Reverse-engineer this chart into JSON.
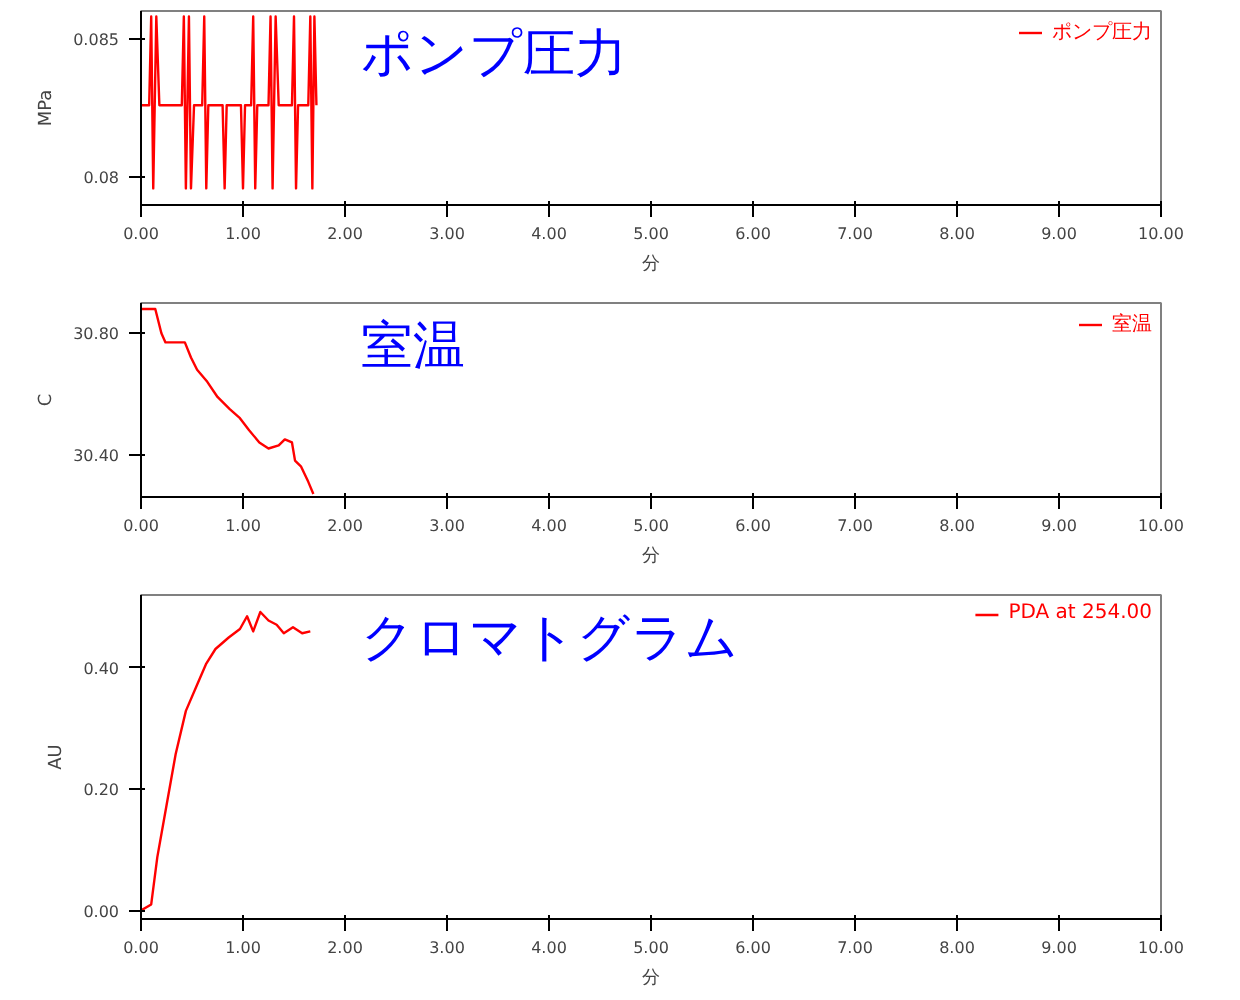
{
  "chart_data": [
    {
      "type": "line",
      "xlabel": "分",
      "ylabel": "MPa",
      "legend": "top right",
      "grid": false,
      "annotations": [
        "ポンプ圧力"
      ],
      "xlim": [
        0,
        10
      ],
      "xticks": [
        {
          "value": 0,
          "label": "0.00"
        },
        {
          "value": 1,
          "label": "1.00"
        },
        {
          "value": 2,
          "label": "2.00"
        },
        {
          "value": 3,
          "label": "3.00"
        },
        {
          "value": 4,
          "label": "4.00"
        },
        {
          "value": 5,
          "label": "5.00"
        },
        {
          "value": 6,
          "label": "6.00"
        },
        {
          "value": 7,
          "label": "7.00"
        },
        {
          "value": 8,
          "label": "8.00"
        },
        {
          "value": 9,
          "label": "9.00"
        },
        {
          "value": 10,
          "label": "10.00"
        }
      ],
      "ylim": [
        0.079,
        0.086
      ],
      "yticks": [
        0.08,
        0.085
      ],
      "series": [
        {
          "name": "ポンプ圧力",
          "color": "#ff0000",
          "x": [
            0,
            0.08,
            0.1,
            0.12,
            0.15,
            0.18,
            0.4,
            0.42,
            0.44,
            0.47,
            0.49,
            0.52,
            0.6,
            0.62,
            0.64,
            0.66,
            0.8,
            0.82,
            0.84,
            0.98,
            1.0,
            1.02,
            1.08,
            1.1,
            1.12,
            1.14,
            1.25,
            1.27,
            1.29,
            1.32,
            1.35,
            1.48,
            1.5,
            1.52,
            1.54,
            1.64,
            1.66,
            1.68,
            1.7,
            1.72
          ],
          "values": [
            0.0826,
            0.0826,
            0.0858,
            0.0796,
            0.0858,
            0.0826,
            0.0826,
            0.0858,
            0.0796,
            0.0858,
            0.0796,
            0.0826,
            0.0826,
            0.0858,
            0.0796,
            0.0826,
            0.0826,
            0.0796,
            0.0826,
            0.0826,
            0.0796,
            0.0826,
            0.0826,
            0.0858,
            0.0796,
            0.0826,
            0.0826,
            0.0858,
            0.0796,
            0.0858,
            0.0826,
            0.0826,
            0.0858,
            0.0796,
            0.0826,
            0.0826,
            0.0858,
            0.0796,
            0.0858,
            0.0826
          ]
        }
      ]
    },
    {
      "type": "line",
      "xlabel": "分",
      "ylabel": "C",
      "legend": "top right",
      "grid": false,
      "annotations": [
        "室温"
      ],
      "xlim": [
        0,
        10
      ],
      "xticks": [
        {
          "value": 0,
          "label": "0.00"
        },
        {
          "value": 1,
          "label": "1.00"
        },
        {
          "value": 2,
          "label": "2.00"
        },
        {
          "value": 3,
          "label": "3.00"
        },
        {
          "value": 4,
          "label": "4.00"
        },
        {
          "value": 5,
          "label": "5.00"
        },
        {
          "value": 6,
          "label": "6.00"
        },
        {
          "value": 7,
          "label": "7.00"
        },
        {
          "value": 8,
          "label": "8.00"
        },
        {
          "value": 9,
          "label": "9.00"
        },
        {
          "value": 10,
          "label": "10.00"
        }
      ],
      "ylim": [
        30.26,
        30.9
      ],
      "yticks": [
        {
          "value": 30.4,
          "label": "30.40"
        },
        {
          "value": 30.8,
          "label": "30.80"
        }
      ],
      "series": [
        {
          "name": "室温",
          "color": "#ff0000",
          "x": [
            0,
            0.14,
            0.2,
            0.24,
            0.43,
            0.49,
            0.55,
            0.65,
            0.75,
            0.87,
            0.97,
            1.06,
            1.16,
            1.25,
            1.35,
            1.41,
            1.48,
            1.51,
            1.57,
            1.64,
            1.69
          ],
          "values": [
            30.88,
            30.88,
            30.8,
            30.77,
            30.77,
            30.72,
            30.68,
            30.64,
            30.59,
            30.55,
            30.52,
            30.48,
            30.44,
            30.42,
            30.43,
            30.45,
            30.44,
            30.38,
            30.36,
            30.31,
            30.27
          ]
        }
      ]
    },
    {
      "type": "line",
      "xlabel": "分",
      "ylabel": "AU",
      "legend": "top right",
      "grid": false,
      "annotations": [
        "クロマトグラム"
      ],
      "xlim": [
        0,
        10
      ],
      "xticks": [
        {
          "value": 0,
          "label": "0.00"
        },
        {
          "value": 1,
          "label": "1.00"
        },
        {
          "value": 2,
          "label": "2.00"
        },
        {
          "value": 3,
          "label": "3.00"
        },
        {
          "value": 4,
          "label": "4.00"
        },
        {
          "value": 5,
          "label": "5.00"
        },
        {
          "value": 6,
          "label": "6.00"
        },
        {
          "value": 7,
          "label": "7.00"
        },
        {
          "value": 8,
          "label": "8.00"
        },
        {
          "value": 9,
          "label": "9.00"
        },
        {
          "value": 10,
          "label": "10.00"
        }
      ],
      "ylim": [
        -0.014,
        0.52
      ],
      "yticks": [
        {
          "value": 0,
          "label": "0.00"
        },
        {
          "value": 0.2,
          "label": "0.20"
        },
        {
          "value": 0.4,
          "label": "0.40"
        }
      ],
      "series": [
        {
          "name": "PDA at 254.00",
          "color": "#ff0000",
          "x": [
            0,
            0.1,
            0.16,
            0.25,
            0.34,
            0.44,
            0.55,
            0.64,
            0.73,
            0.86,
            0.97,
            1.04,
            1.1,
            1.17,
            1.25,
            1.33,
            1.4,
            1.49,
            1.58,
            1.66
          ],
          "values": [
            0,
            0.01,
            0.088,
            0.173,
            0.258,
            0.329,
            0.372,
            0.407,
            0.431,
            0.45,
            0.464,
            0.485,
            0.46,
            0.492,
            0.478,
            0.471,
            0.457,
            0.467,
            0.457,
            0.46
          ]
        }
      ]
    }
  ]
}
